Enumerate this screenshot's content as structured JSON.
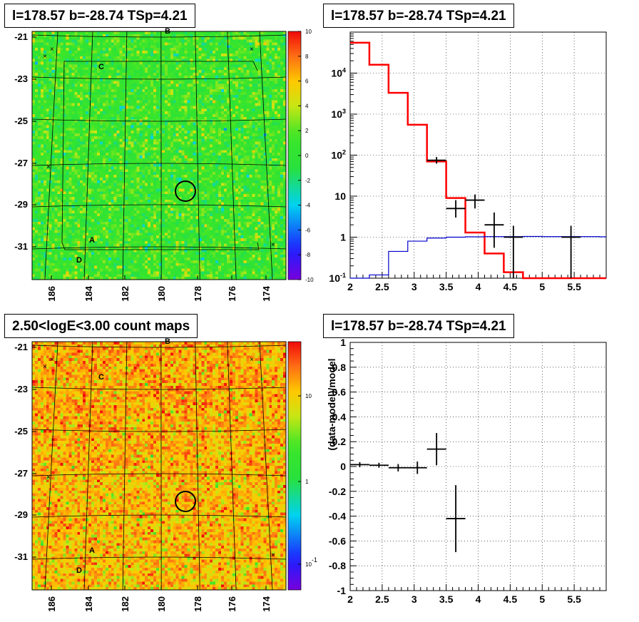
{
  "panels": {
    "tl_title": "l=178.57 b=-28.74 TSp=4.21",
    "tr_title": "l=178.57 b=-28.74 TSp=4.21",
    "bl_title": "2.50<logE<3.00 count maps",
    "br_title": "l=178.57 b=-28.74 TSp=4.21"
  },
  "colors": {
    "model_line": "#ff0000",
    "background_line": "#0000cc",
    "data_marker": "#000000",
    "residual_map_mid": "#33e633",
    "count_map_mid": "#f05a1e"
  },
  "chart_data": [
    {
      "type": "heatmap",
      "name": "residual significance map",
      "x_ticks": [
        "186",
        "184",
        "182",
        "180",
        "178",
        "176",
        "174"
      ],
      "y_ticks": [
        "-21",
        "-23",
        "-25",
        "-27",
        "-29",
        "-31"
      ],
      "colorbar_ticks": [
        "10",
        "8",
        "6",
        "4",
        "2",
        "0",
        "-2",
        "-4",
        "-6",
        "-8",
        "-10"
      ],
      "colorbar_range": [
        -10,
        10
      ],
      "typical_value": 0,
      "source_markers": [
        "A",
        "B",
        "C",
        "D"
      ],
      "circle_center": {
        "l": 178.57,
        "b": -28.74
      }
    },
    {
      "type": "line",
      "name": "counts spectrum",
      "y_scale": "log",
      "xlim": [
        2,
        6
      ],
      "ylim": [
        0.1,
        100000
      ],
      "x_ticks": [
        "2",
        "2.5",
        "3",
        "3.5",
        "4",
        "4.5",
        "5",
        "5.5"
      ],
      "y_ticks": [
        "10^-1",
        "1",
        "10",
        "10^2",
        "10^3",
        "10^4"
      ],
      "grid": true,
      "series": [
        {
          "kind": "step",
          "bins": [
            2.0,
            2.3,
            2.6,
            2.9,
            3.2,
            3.5,
            3.8,
            4.1,
            4.4,
            4.7,
            5.0,
            5.3,
            5.6,
            5.9,
            6.0
          ],
          "values": [
            55000,
            16000,
            3300,
            550,
            70,
            9,
            1.3,
            0.4,
            0.14,
            0.1,
            0.1,
            0.1,
            0.1,
            0.1
          ]
        },
        {
          "kind": "step",
          "bins": [
            2.0,
            2.3,
            2.6,
            2.9,
            3.2,
            3.5,
            3.8,
            4.1,
            4.4,
            4.7,
            5.0,
            5.3,
            5.6,
            5.9,
            6.0
          ],
          "values": [
            0.1,
            0.12,
            0.45,
            0.8,
            0.95,
            1.0,
            1.02,
            1.03,
            1.03,
            1.04,
            1.03,
            1.03,
            1.03,
            1.02
          ]
        },
        {
          "kind": "errorbar",
          "points": [
            {
              "x": 3.35,
              "xerr": 0.15,
              "y": 75,
              "ylo": 62,
              "yhi": 90
            },
            {
              "x": 3.65,
              "xerr": 0.15,
              "y": 5,
              "ylo": 3,
              "yhi": 8
            },
            {
              "x": 3.95,
              "xerr": 0.15,
              "y": 8,
              "ylo": 5,
              "yhi": 11
            },
            {
              "x": 4.25,
              "xerr": 0.15,
              "y": 2,
              "ylo": 0.55,
              "yhi": 4
            },
            {
              "x": 4.55,
              "xerr": 0.15,
              "y": 1,
              "ylo": 0.1,
              "yhi": 1.9
            },
            {
              "x": 5.45,
              "xerr": 0.15,
              "y": 1,
              "ylo": 0.1,
              "yhi": 1.9
            }
          ]
        }
      ]
    },
    {
      "type": "heatmap",
      "name": "count map",
      "x_ticks": [
        "186",
        "184",
        "182",
        "180",
        "178",
        "176",
        "174"
      ],
      "y_ticks": [
        "-21",
        "-23",
        "-25",
        "-27",
        "-29",
        "-31"
      ],
      "colorbar_ticks": [
        "10",
        "1",
        "10^-1"
      ],
      "colorbar_scale": "log",
      "source_markers": [
        "A",
        "B",
        "C",
        "D"
      ],
      "circle_center": {
        "l": 178.57,
        "b": -28.74
      }
    },
    {
      "type": "scatter",
      "name": "residuals",
      "ylabel": "(data-model)/model",
      "xlim": [
        2,
        6
      ],
      "ylim": [
        -1,
        1
      ],
      "x_ticks": [
        "2",
        "2.5",
        "3",
        "3.5",
        "4",
        "4.5",
        "5",
        "5.5"
      ],
      "y_ticks": [
        "1",
        "0.8",
        "0.6",
        "0.4",
        "0.2",
        "0",
        "-0.2",
        "-0.4",
        "-0.6",
        "-0.8",
        "-1"
      ],
      "grid": true,
      "points": [
        {
          "x": 2.15,
          "xerr": 0.15,
          "y": 0.015,
          "ylo": -0.005,
          "yhi": 0.035
        },
        {
          "x": 2.45,
          "xerr": 0.15,
          "y": 0.01,
          "ylo": -0.01,
          "yhi": 0.03
        },
        {
          "x": 2.75,
          "xerr": 0.15,
          "y": -0.01,
          "ylo": -0.04,
          "yhi": 0.02
        },
        {
          "x": 3.05,
          "xerr": 0.15,
          "y": -0.01,
          "ylo": -0.06,
          "yhi": 0.04
        },
        {
          "x": 3.35,
          "xerr": 0.15,
          "y": 0.14,
          "ylo": 0.01,
          "yhi": 0.27
        },
        {
          "x": 3.65,
          "xerr": 0.15,
          "y": -0.42,
          "ylo": -0.69,
          "yhi": -0.15
        }
      ]
    }
  ]
}
